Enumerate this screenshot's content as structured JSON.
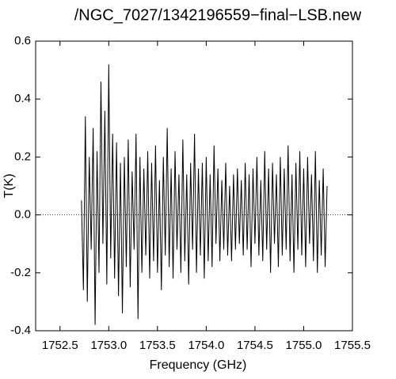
{
  "chart_data": {
    "type": "line",
    "title": "/NGC_7027/1342196559−final−LSB.new",
    "xlabel": "Frequency (GHz)",
    "ylabel": "T(K)",
    "color": "#000000",
    "zero_line": true,
    "xlim": [
      1752.25,
      1755.5
    ],
    "ylim": [
      -0.4,
      0.6
    ],
    "xticks": [
      1752.5,
      {
        "value": 1753,
        "label": "1753.0"
      },
      1753.5,
      {
        "value": 1754,
        "label": "1754.0"
      },
      1754.5,
      {
        "value": 1755,
        "label": "1755.0"
      },
      1755.5
    ],
    "yticks": [
      -0.4,
      -0.2,
      {
        "value": 0,
        "label": "0.0"
      },
      0.2,
      0.4,
      0.6
    ],
    "x": [
      1752.72,
      1752.74,
      1752.76,
      1752.78,
      1752.8,
      1752.82,
      1752.84,
      1752.86,
      1752.88,
      1752.9,
      1752.92,
      1752.94,
      1752.96,
      1752.98,
      1753.0,
      1753.02,
      1753.04,
      1753.06,
      1753.08,
      1753.1,
      1753.12,
      1753.14,
      1753.16,
      1753.18,
      1753.2,
      1753.22,
      1753.24,
      1753.26,
      1753.28,
      1753.3,
      1753.32,
      1753.34,
      1753.36,
      1753.38,
      1753.4,
      1753.42,
      1753.44,
      1753.46,
      1753.48,
      1753.5,
      1753.52,
      1753.54,
      1753.56,
      1753.58,
      1753.6,
      1753.62,
      1753.64,
      1753.66,
      1753.68,
      1753.7,
      1753.72,
      1753.74,
      1753.76,
      1753.78,
      1753.8,
      1753.82,
      1753.84,
      1753.86,
      1753.88,
      1753.9,
      1753.92,
      1753.94,
      1753.96,
      1753.98,
      1754.0,
      1754.02,
      1754.04,
      1754.06,
      1754.08,
      1754.1,
      1754.12,
      1754.14,
      1754.16,
      1754.18,
      1754.2,
      1754.22,
      1754.24,
      1754.26,
      1754.28,
      1754.3,
      1754.32,
      1754.34,
      1754.36,
      1754.38,
      1754.4,
      1754.42,
      1754.44,
      1754.46,
      1754.48,
      1754.5,
      1754.52,
      1754.54,
      1754.56,
      1754.58,
      1754.6,
      1754.62,
      1754.64,
      1754.66,
      1754.68,
      1754.7,
      1754.72,
      1754.74,
      1754.76,
      1754.78,
      1754.8,
      1754.82,
      1754.84,
      1754.86,
      1754.88,
      1754.9,
      1754.92,
      1754.94,
      1754.96,
      1754.98,
      1755.0,
      1755.02,
      1755.04,
      1755.06,
      1755.08,
      1755.1,
      1755.12,
      1755.14,
      1755.16,
      1755.18,
      1755.2,
      1755.22,
      1755.24
    ],
    "values": [
      0.05,
      -0.26,
      0.34,
      -0.3,
      0.2,
      -0.12,
      0.3,
      -0.38,
      0.22,
      -0.2,
      0.46,
      -0.1,
      0.36,
      -0.24,
      0.52,
      -0.15,
      0.28,
      -0.22,
      0.25,
      -0.28,
      0.18,
      -0.34,
      0.2,
      -0.18,
      0.26,
      -0.25,
      0.15,
      -0.12,
      0.28,
      -0.36,
      0.2,
      -0.2,
      0.16,
      -0.14,
      0.22,
      -0.22,
      0.18,
      -0.16,
      0.24,
      -0.2,
      0.12,
      -0.26,
      0.2,
      -0.14,
      0.3,
      -0.18,
      0.16,
      -0.22,
      0.22,
      -0.12,
      0.14,
      -0.2,
      0.26,
      -0.16,
      0.14,
      -0.24,
      0.18,
      -0.12,
      0.28,
      -0.2,
      0.16,
      -0.14,
      0.18,
      -0.22,
      0.2,
      -0.16,
      0.14,
      -0.18,
      0.24,
      -0.1,
      0.16,
      -0.16,
      0.12,
      -0.12,
      0.18,
      -0.14,
      0.1,
      -0.16,
      0.14,
      -0.12,
      0.16,
      -0.1,
      0.12,
      -0.14,
      0.18,
      -0.12,
      0.14,
      -0.18,
      0.16,
      -0.1,
      0.2,
      -0.14,
      0.12,
      -0.16,
      0.22,
      -0.12,
      0.16,
      -0.2,
      0.18,
      -0.1,
      0.14,
      -0.18,
      0.2,
      -0.14,
      0.16,
      -0.12,
      0.24,
      -0.16,
      0.14,
      -0.2,
      0.18,
      -0.12,
      0.22,
      -0.14,
      0.16,
      -0.18,
      0.2,
      -0.1,
      0.14,
      -0.16,
      0.22,
      -0.2,
      0.12,
      -0.14,
      0.16,
      -0.18,
      0.1
    ]
  }
}
